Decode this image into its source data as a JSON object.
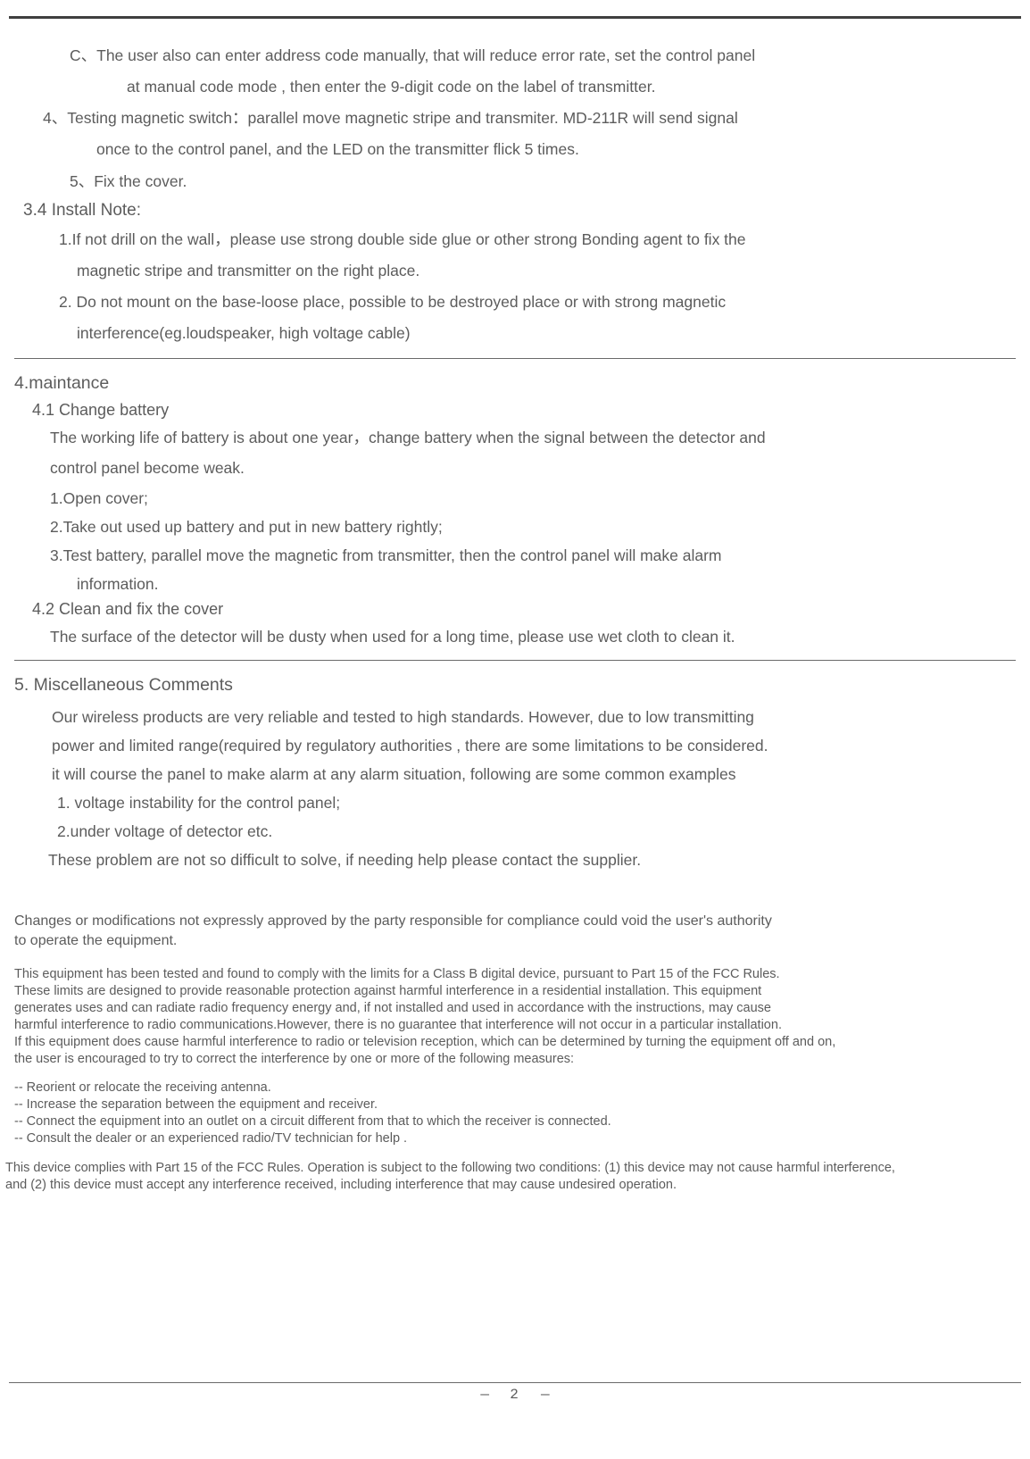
{
  "colors": {
    "text": "#5c5c5c",
    "rule_dark": "#404040",
    "rule_light": "#6a6a6a",
    "background": "#ffffff"
  },
  "section_intro": {
    "c_line1": "C、The user also can enter address code manually, that will reduce error rate, set the control panel",
    "c_line2": "at manual code mode , then enter the 9-digit code on the label of transmitter.",
    "item4_line1": "4、Testing magnetic switch：parallel move magnetic stripe and transmiter.  MD-211R will send signal",
    "item4_line2": "once to the control panel, and the LED on the transmitter flick 5 times.",
    "item5": "5、Fix the cover."
  },
  "section34": {
    "heading": "3.4  Install Note:",
    "item1_line1": "1.If not drill on the wall，please use strong double side glue or other strong Bonding agent to fix the",
    "item1_line2": "magnetic stripe and transmitter on the right place.",
    "item2_line1": "2. Do not mount on the base-loose place, possible to be destroyed place or with strong magnetic",
    "item2_line2": "interference(eg.loudspeaker, high voltage cable)"
  },
  "section4": {
    "heading": "4.maintance",
    "sub41_heading": "4.1 Change battery",
    "sub41_para_line1": "The working life of battery is about one year，change battery when the signal between the detector and",
    "sub41_para_line2": "control panel become weak.",
    "sub41_step1": "1.Open cover;",
    "sub41_step2": "2.Take out used up battery and put  in new battery rightly;",
    "sub41_step3_line1": "3.Test battery,  parallel  move   the  magnetic  from  transmitter,   then  the control panel will make alarm",
    "sub41_step3_line2": "information.",
    "sub42_heading": "4.2 Clean and fix the cover",
    "sub42_para": "The surface of the detector will be dusty when used for a long time, please use wet cloth to clean it."
  },
  "section5": {
    "heading": "5. Miscellaneous Comments",
    "para_line1": "Our wireless products are very reliable and tested to high standards. However, due to low transmitting",
    "para_line2": "power and limited range(required by regulatory authorities , there are some limitations to be considered.",
    "para_line3": "it will course the panel to make alarm at any alarm situation, following are some common examples",
    "sub1": "1. voltage instability for the control panel;",
    "sub2": "2.under voltage of detector etc.",
    "final": "These problem are not so difficult to solve, if needing help please contact the supplier."
  },
  "fcc": {
    "lead_line1": "Changes or modifications not expressly approved by the party responsible for compliance could void the user's authority",
    "lead_line2": "to operate the equipment.",
    "body_line1": "This equipment has been tested and found to comply with the limits for a Class B digital device, pursuant to Part 15 of the FCC Rules.",
    "body_line2": "These limits are designed to provide reasonable protection against harmful interference in a residential installation. This equipment",
    "body_line3": "generates uses and can radiate radio frequency energy and, if not installed and used in accordance with the instructions, may cause",
    "body_line4": "harmful interference to radio communications.However, there is no guarantee that interference will not occur in a particular installation.",
    "body_line5": "If this equipment does cause harmful interference to radio or television reception, which can be determined by turning the equipment off and on,",
    "body_line6": "the user is encouraged to try to correct the interference by one or more of the following measures:",
    "bullet1": "-- Reorient or relocate the receiving antenna.",
    "bullet2": "-- Increase the separation between the equipment and receiver.",
    "bullet3": "-- Connect the equipment into an outlet on a circuit different from that to which the receiver is connected.",
    "bullet4": "-- Consult the dealer or an experienced radio/TV technician for help .",
    "tail_line1": "This device complies with Part 15 of the FCC Rules. Operation is subject to the following two conditions: (1) this device may not cause harmful interference,",
    "tail_line2": "and (2) this device must accept any interference  received, including interference that may cause undesired operation."
  },
  "footer": {
    "page_number": "2"
  }
}
